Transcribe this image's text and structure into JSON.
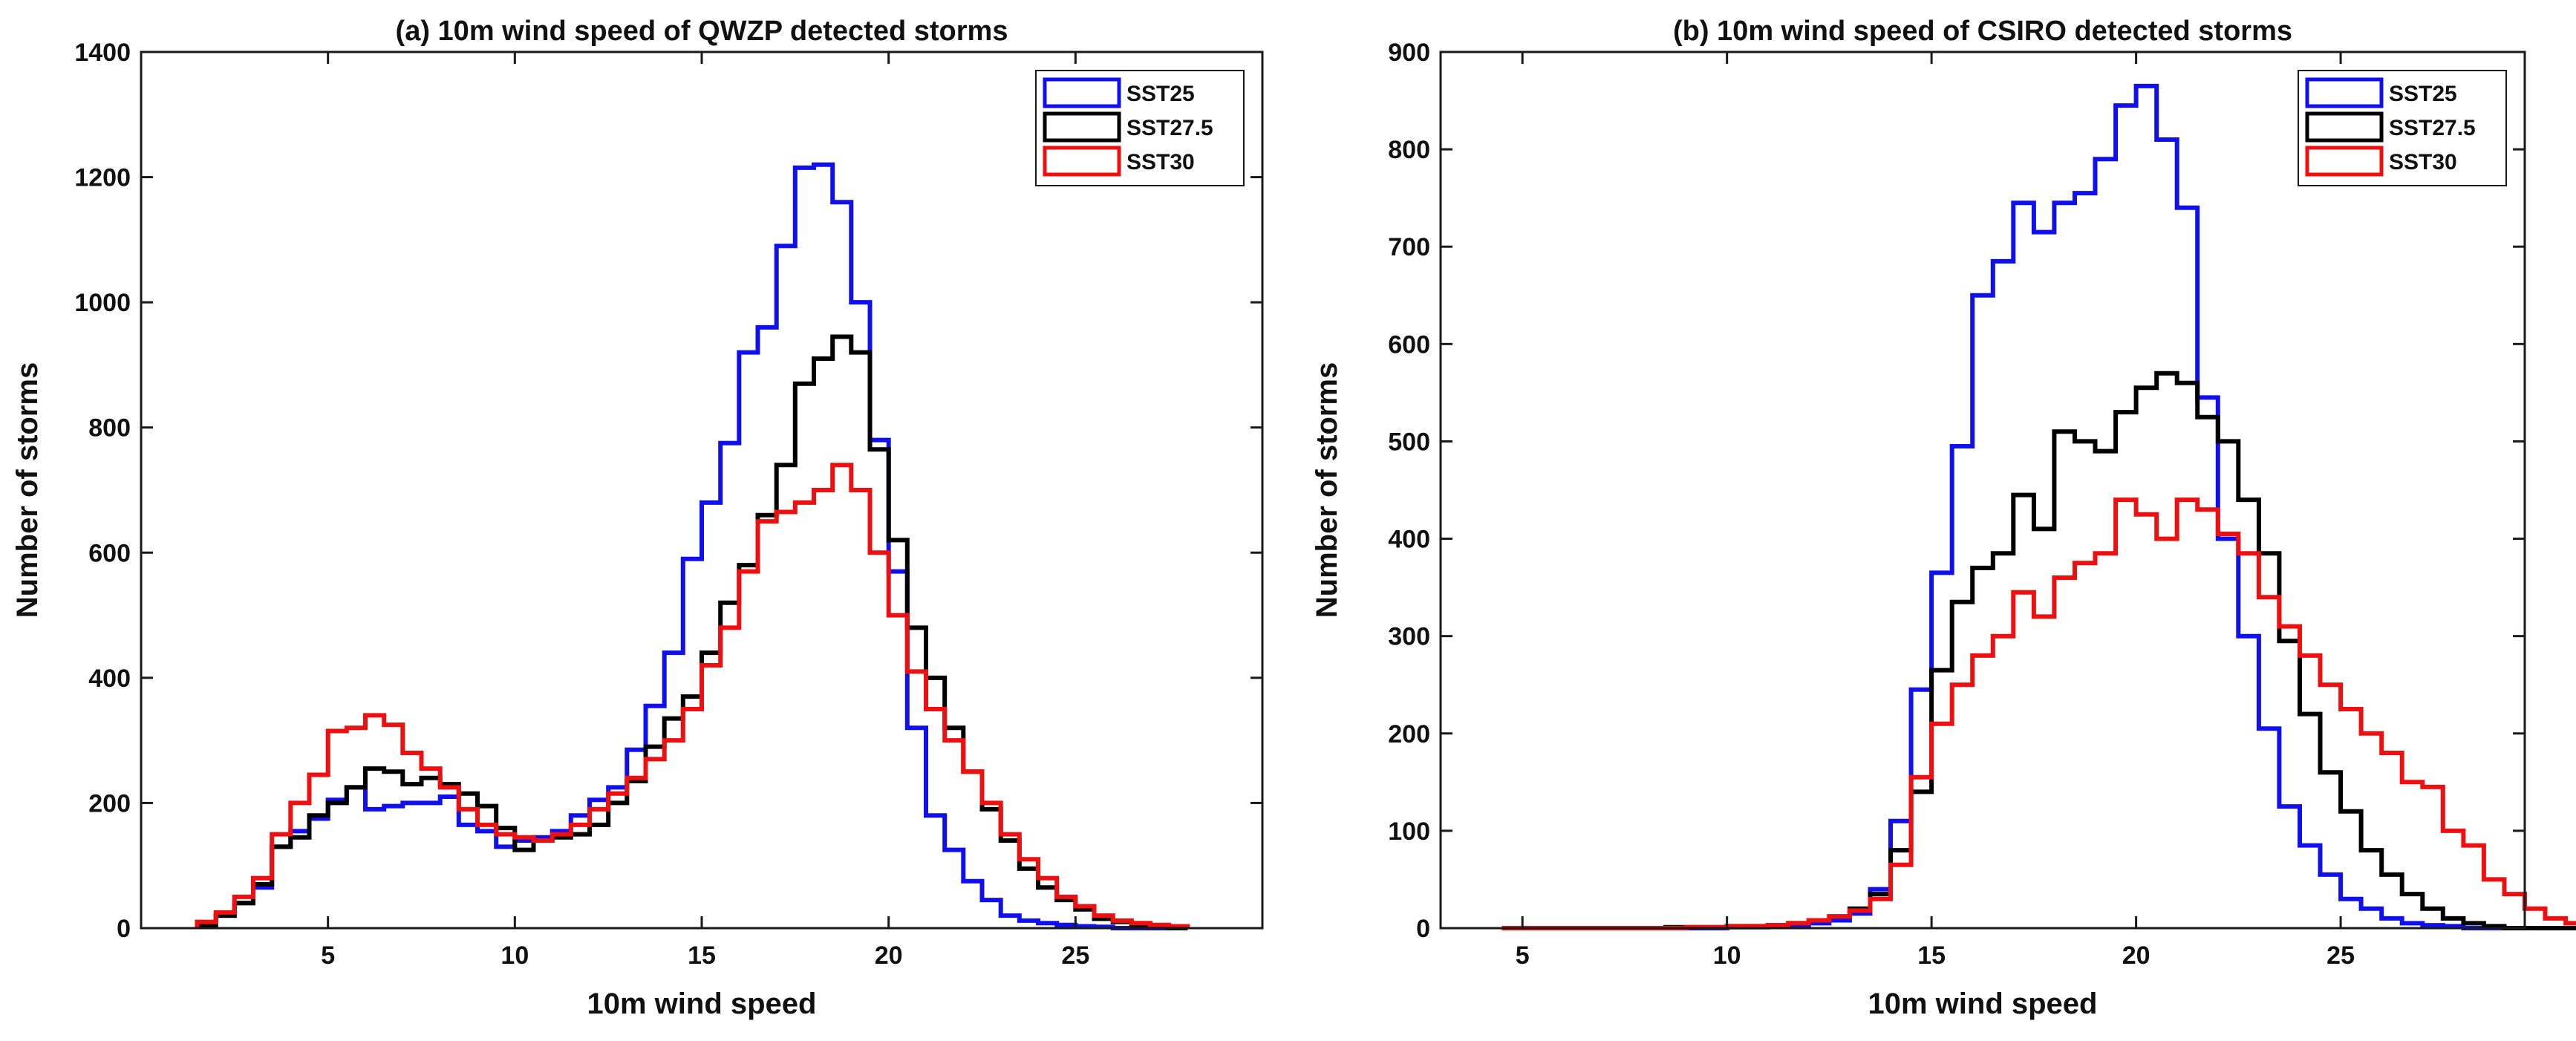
{
  "chart_data": [
    {
      "type": "histogram",
      "title": "(a) 10m wind speed of QWZP detected storms",
      "xlabel": "10m wind speed",
      "ylabel": "Number of storms",
      "xlim": [
        0,
        30
      ],
      "ylim": [
        0,
        1400
      ],
      "xticks": [
        5,
        10,
        15,
        20,
        25
      ],
      "yticks": [
        0,
        200,
        400,
        600,
        800,
        1000,
        1200,
        1400
      ],
      "bin_start": 1.5,
      "bin_width": 0.5,
      "legend_position": "top-right",
      "series": [
        {
          "name": "SST25",
          "color": "#1010ee",
          "values": [
            5,
            20,
            40,
            65,
            130,
            155,
            175,
            205,
            225,
            190,
            195,
            200,
            200,
            210,
            165,
            155,
            130,
            140,
            145,
            155,
            180,
            205,
            225,
            285,
            355,
            440,
            590,
            680,
            775,
            920,
            960,
            1090,
            1215,
            1220,
            1160,
            1000,
            780,
            570,
            320,
            180,
            125,
            75,
            45,
            20,
            12,
            8,
            5,
            3,
            2,
            0,
            0,
            0,
            0
          ]
        },
        {
          "name": "SST27.5",
          "color": "#000000",
          "values": [
            5,
            20,
            40,
            70,
            130,
            145,
            180,
            200,
            225,
            255,
            250,
            230,
            240,
            230,
            215,
            195,
            160,
            125,
            140,
            145,
            150,
            165,
            200,
            235,
            290,
            335,
            370,
            440,
            520,
            580,
            660,
            740,
            870,
            910,
            945,
            920,
            765,
            620,
            480,
            400,
            320,
            250,
            190,
            140,
            95,
            65,
            45,
            30,
            15,
            10,
            5,
            3,
            0
          ]
        },
        {
          "name": "SST30",
          "color": "#ee1010",
          "values": [
            10,
            25,
            50,
            80,
            150,
            200,
            245,
            315,
            320,
            340,
            325,
            280,
            255,
            225,
            190,
            165,
            150,
            145,
            140,
            150,
            165,
            190,
            215,
            240,
            270,
            300,
            350,
            420,
            480,
            570,
            650,
            665,
            680,
            700,
            740,
            700,
            600,
            500,
            410,
            350,
            300,
            250,
            200,
            150,
            110,
            80,
            50,
            35,
            20,
            12,
            8,
            5,
            3
          ]
        }
      ]
    },
    {
      "type": "histogram",
      "title": "(b) 10m wind speed of CSIRO detected storms",
      "xlabel": "10m wind speed",
      "ylabel": "Number of storms",
      "xlim": [
        3,
        29.5
      ],
      "ylim": [
        0,
        900
      ],
      "xticks": [
        5,
        10,
        15,
        20,
        25
      ],
      "yticks": [
        0,
        100,
        200,
        300,
        400,
        500,
        600,
        700,
        800,
        900
      ],
      "bin_start": 4.5,
      "bin_width": 0.5,
      "legend_position": "top-right",
      "series": [
        {
          "name": "SST25",
          "color": "#1010ee",
          "values": [
            0,
            0,
            0,
            0,
            0,
            0,
            0,
            0,
            0,
            0,
            0,
            1,
            1,
            2,
            3,
            5,
            8,
            15,
            40,
            110,
            245,
            365,
            495,
            650,
            685,
            745,
            715,
            745,
            755,
            790,
            845,
            865,
            810,
            740,
            545,
            400,
            300,
            205,
            125,
            85,
            55,
            30,
            20,
            10,
            5,
            3,
            2,
            0,
            0,
            0,
            0,
            0,
            0,
            0
          ]
        },
        {
          "name": "SST27.5",
          "color": "#000000",
          "values": [
            0,
            0,
            0,
            0,
            0,
            0,
            0,
            0,
            1,
            1,
            1,
            2,
            2,
            3,
            5,
            8,
            12,
            20,
            35,
            80,
            140,
            265,
            335,
            370,
            385,
            445,
            410,
            510,
            500,
            490,
            530,
            555,
            570,
            560,
            525,
            500,
            440,
            385,
            295,
            220,
            160,
            120,
            80,
            55,
            35,
            20,
            10,
            5,
            2,
            0,
            0,
            0,
            0,
            0
          ]
        },
        {
          "name": "SST30",
          "color": "#ee1010",
          "values": [
            0,
            0,
            0,
            0,
            0,
            0,
            0,
            0,
            0,
            1,
            1,
            2,
            2,
            3,
            5,
            8,
            12,
            18,
            30,
            65,
            155,
            210,
            250,
            280,
            300,
            345,
            320,
            360,
            375,
            385,
            440,
            425,
            400,
            440,
            430,
            405,
            385,
            340,
            310,
            280,
            250,
            225,
            200,
            180,
            150,
            145,
            100,
            85,
            50,
            35,
            20,
            10,
            5,
            0
          ]
        }
      ]
    }
  ]
}
